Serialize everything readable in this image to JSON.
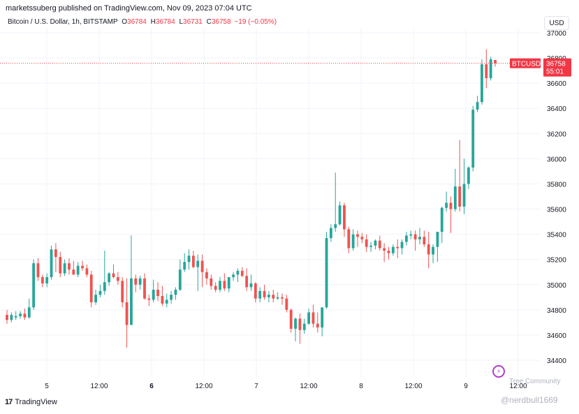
{
  "header": {
    "attribution": "marketssuberg published on TradingView.com, Nov 09, 2023 07:04 UTC"
  },
  "legend": {
    "symbol": "Bitcoin / U.S. Dollar, 1h, BITSTAMP",
    "o_label": "O",
    "o": "36784",
    "h_label": "H",
    "h": "36784",
    "l_label": "L",
    "l": "36731",
    "c_label": "C",
    "c": "36758",
    "change": "−19 (−0.05%)"
  },
  "currency_button": "USD",
  "price_tag": {
    "symbol": "BTCUSD",
    "price": "36758",
    "countdown": "55:01"
  },
  "branding": {
    "logo_text": "TradingView"
  },
  "watermarks": {
    "community": "Tree Community",
    "user": "@nerdbull1669"
  },
  "colors": {
    "up": "#26a69a",
    "down": "#ef5350",
    "grid": "#f0f3fa",
    "axis_text": "#131722",
    "price_line": "#f23645"
  },
  "chart_data": {
    "type": "candlestick",
    "title": "Bitcoin / U.S. Dollar, 1h, BITSTAMP",
    "ylim": [
      34300,
      37050
    ],
    "yticks": [
      34400,
      34600,
      34800,
      35000,
      35200,
      35400,
      35600,
      35800,
      36000,
      36200,
      36400,
      36600,
      36800,
      37000
    ],
    "xticks": [
      {
        "label": "5",
        "bold": false
      },
      {
        "label": "12:00",
        "bold": false
      },
      {
        "label": "6",
        "bold": true
      },
      {
        "label": "12:00",
        "bold": false
      },
      {
        "label": "7",
        "bold": false
      },
      {
        "label": "12:00",
        "bold": false
      },
      {
        "label": "8",
        "bold": false
      },
      {
        "label": "12:00",
        "bold": false
      },
      {
        "label": "9",
        "bold": false
      },
      {
        "label": "12:00",
        "bold": false
      }
    ],
    "last_price": 36758,
    "candles": [
      {
        "o": 34760,
        "h": 34800,
        "l": 34690,
        "c": 34720
      },
      {
        "o": 34720,
        "h": 34780,
        "l": 34700,
        "c": 34760
      },
      {
        "o": 34740,
        "h": 34790,
        "l": 34720,
        "c": 34750
      },
      {
        "o": 34750,
        "h": 34790,
        "l": 34730,
        "c": 34770
      },
      {
        "o": 34770,
        "h": 34810,
        "l": 34720,
        "c": 34740
      },
      {
        "o": 34740,
        "h": 34890,
        "l": 34730,
        "c": 34820
      },
      {
        "o": 34820,
        "h": 35200,
        "l": 34800,
        "c": 35170
      },
      {
        "o": 35170,
        "h": 35210,
        "l": 35030,
        "c": 35060
      },
      {
        "o": 35060,
        "h": 35080,
        "l": 34980,
        "c": 35010
      },
      {
        "o": 35010,
        "h": 35090,
        "l": 34980,
        "c": 35060
      },
      {
        "o": 35060,
        "h": 35310,
        "l": 35040,
        "c": 35280
      },
      {
        "o": 35280,
        "h": 35330,
        "l": 35100,
        "c": 35220
      },
      {
        "o": 35220,
        "h": 35260,
        "l": 35060,
        "c": 35090
      },
      {
        "o": 35090,
        "h": 35200,
        "l": 35070,
        "c": 35170
      },
      {
        "o": 35170,
        "h": 35210,
        "l": 35080,
        "c": 35120
      },
      {
        "o": 35120,
        "h": 35190,
        "l": 35080,
        "c": 35080
      },
      {
        "o": 35080,
        "h": 35180,
        "l": 35060,
        "c": 35150
      },
      {
        "o": 35150,
        "h": 35190,
        "l": 35110,
        "c": 35130
      },
      {
        "o": 35130,
        "h": 35160,
        "l": 35060,
        "c": 35080
      },
      {
        "o": 35080,
        "h": 35110,
        "l": 34820,
        "c": 34860
      },
      {
        "o": 34860,
        "h": 34960,
        "l": 34840,
        "c": 34920
      },
      {
        "o": 34920,
        "h": 35000,
        "l": 34900,
        "c": 34950
      },
      {
        "o": 34950,
        "h": 35270,
        "l": 34920,
        "c": 35020
      },
      {
        "o": 35020,
        "h": 35100,
        "l": 34990,
        "c": 35090
      },
      {
        "o": 35090,
        "h": 35160,
        "l": 35050,
        "c": 35060
      },
      {
        "o": 35060,
        "h": 35100,
        "l": 35000,
        "c": 35030
      },
      {
        "o": 35030,
        "h": 35060,
        "l": 34820,
        "c": 34860
      },
      {
        "o": 34860,
        "h": 35050,
        "l": 34500,
        "c": 34680
      },
      {
        "o": 34680,
        "h": 35390,
        "l": 34680,
        "c": 35050
      },
      {
        "o": 35050,
        "h": 35080,
        "l": 34940,
        "c": 35000
      },
      {
        "o": 35000,
        "h": 35070,
        "l": 34960,
        "c": 35050
      },
      {
        "o": 35050,
        "h": 35090,
        "l": 34880,
        "c": 34890
      },
      {
        "o": 34890,
        "h": 34920,
        "l": 34830,
        "c": 34880
      },
      {
        "o": 34880,
        "h": 35040,
        "l": 34860,
        "c": 34960
      },
      {
        "o": 34960,
        "h": 35020,
        "l": 34870,
        "c": 34910
      },
      {
        "o": 34910,
        "h": 34990,
        "l": 34830,
        "c": 34850
      },
      {
        "o": 34850,
        "h": 34930,
        "l": 34820,
        "c": 34880
      },
      {
        "o": 34880,
        "h": 34950,
        "l": 34850,
        "c": 34920
      },
      {
        "o": 34920,
        "h": 34980,
        "l": 34880,
        "c": 34960
      },
      {
        "o": 34960,
        "h": 35200,
        "l": 34950,
        "c": 35120
      },
      {
        "o": 35120,
        "h": 35250,
        "l": 35100,
        "c": 35180
      },
      {
        "o": 35180,
        "h": 35280,
        "l": 35120,
        "c": 35230
      },
      {
        "o": 35230,
        "h": 35270,
        "l": 35130,
        "c": 35140
      },
      {
        "o": 35140,
        "h": 35240,
        "l": 34950,
        "c": 35190
      },
      {
        "o": 35190,
        "h": 35240,
        "l": 34980,
        "c": 35100
      },
      {
        "o": 35100,
        "h": 35130,
        "l": 35000,
        "c": 35050
      },
      {
        "o": 35050,
        "h": 35080,
        "l": 34960,
        "c": 34990
      },
      {
        "o": 34990,
        "h": 35020,
        "l": 34940,
        "c": 34960
      },
      {
        "o": 34960,
        "h": 35060,
        "l": 34940,
        "c": 35030
      },
      {
        "o": 35030,
        "h": 35090,
        "l": 34950,
        "c": 34970
      },
      {
        "o": 34970,
        "h": 35050,
        "l": 34940,
        "c": 35060
      },
      {
        "o": 35060,
        "h": 35100,
        "l": 35030,
        "c": 35080
      },
      {
        "o": 35080,
        "h": 35130,
        "l": 35020,
        "c": 35110
      },
      {
        "o": 35110,
        "h": 35140,
        "l": 35060,
        "c": 35070
      },
      {
        "o": 35070,
        "h": 35130,
        "l": 34950,
        "c": 34980
      },
      {
        "o": 34980,
        "h": 35080,
        "l": 34950,
        "c": 35010
      },
      {
        "o": 35010,
        "h": 35020,
        "l": 34860,
        "c": 34890
      },
      {
        "o": 34890,
        "h": 34980,
        "l": 34860,
        "c": 34950
      },
      {
        "o": 34950,
        "h": 35000,
        "l": 34880,
        "c": 34900
      },
      {
        "o": 34900,
        "h": 34950,
        "l": 34860,
        "c": 34920
      },
      {
        "o": 34920,
        "h": 34960,
        "l": 34860,
        "c": 34890
      },
      {
        "o": 34890,
        "h": 34940,
        "l": 34880,
        "c": 34900
      },
      {
        "o": 34900,
        "h": 34930,
        "l": 34840,
        "c": 34890
      },
      {
        "o": 34890,
        "h": 34920,
        "l": 34780,
        "c": 34800
      },
      {
        "o": 34800,
        "h": 34810,
        "l": 34620,
        "c": 34650
      },
      {
        "o": 34650,
        "h": 34740,
        "l": 34550,
        "c": 34730
      },
      {
        "o": 34730,
        "h": 34770,
        "l": 34530,
        "c": 34640
      },
      {
        "o": 34640,
        "h": 34730,
        "l": 34610,
        "c": 34690
      },
      {
        "o": 34690,
        "h": 34810,
        "l": 34680,
        "c": 34780
      },
      {
        "o": 34780,
        "h": 34840,
        "l": 34660,
        "c": 34690
      },
      {
        "o": 34690,
        "h": 34780,
        "l": 34620,
        "c": 34660
      },
      {
        "o": 34660,
        "h": 34820,
        "l": 34590,
        "c": 34820
      },
      {
        "o": 34820,
        "h": 35420,
        "l": 34810,
        "c": 35370
      },
      {
        "o": 35370,
        "h": 35480,
        "l": 35340,
        "c": 35450
      },
      {
        "o": 35450,
        "h": 35890,
        "l": 35420,
        "c": 35480
      },
      {
        "o": 35480,
        "h": 35660,
        "l": 35470,
        "c": 35630
      },
      {
        "o": 35630,
        "h": 35650,
        "l": 35380,
        "c": 35440
      },
      {
        "o": 35440,
        "h": 35460,
        "l": 35250,
        "c": 35290
      },
      {
        "o": 35290,
        "h": 35440,
        "l": 35270,
        "c": 35400
      },
      {
        "o": 35400,
        "h": 35430,
        "l": 35300,
        "c": 35380
      },
      {
        "o": 35380,
        "h": 35410,
        "l": 35330,
        "c": 35360
      },
      {
        "o": 35360,
        "h": 35400,
        "l": 35260,
        "c": 35300
      },
      {
        "o": 35300,
        "h": 35340,
        "l": 35260,
        "c": 35310
      },
      {
        "o": 35310,
        "h": 35360,
        "l": 35280,
        "c": 35350
      },
      {
        "o": 35350,
        "h": 35390,
        "l": 35270,
        "c": 35290
      },
      {
        "o": 35290,
        "h": 35330,
        "l": 35180,
        "c": 35270
      },
      {
        "o": 35270,
        "h": 35300,
        "l": 35200,
        "c": 35250
      },
      {
        "o": 35250,
        "h": 35320,
        "l": 35230,
        "c": 35300
      },
      {
        "o": 35300,
        "h": 35360,
        "l": 35210,
        "c": 35290
      },
      {
        "o": 35290,
        "h": 35360,
        "l": 35240,
        "c": 35340
      },
      {
        "o": 35340,
        "h": 35420,
        "l": 35310,
        "c": 35390
      },
      {
        "o": 35390,
        "h": 35430,
        "l": 35360,
        "c": 35400
      },
      {
        "o": 35400,
        "h": 35430,
        "l": 35270,
        "c": 35360
      },
      {
        "o": 35360,
        "h": 35450,
        "l": 35320,
        "c": 35380
      },
      {
        "o": 35380,
        "h": 35430,
        "l": 35300,
        "c": 35320
      },
      {
        "o": 35320,
        "h": 35420,
        "l": 35130,
        "c": 35240
      },
      {
        "o": 35240,
        "h": 35320,
        "l": 35170,
        "c": 35300
      },
      {
        "o": 35300,
        "h": 35420,
        "l": 35180,
        "c": 35420
      },
      {
        "o": 35420,
        "h": 35620,
        "l": 35330,
        "c": 35610
      },
      {
        "o": 35610,
        "h": 35740,
        "l": 35580,
        "c": 35650
      },
      {
        "o": 35650,
        "h": 35700,
        "l": 35410,
        "c": 35600
      },
      {
        "o": 35600,
        "h": 35920,
        "l": 35580,
        "c": 35780
      },
      {
        "o": 35780,
        "h": 36150,
        "l": 35580,
        "c": 35620
      },
      {
        "o": 35620,
        "h": 36000,
        "l": 35560,
        "c": 35800
      },
      {
        "o": 35800,
        "h": 35940,
        "l": 35760,
        "c": 35930
      },
      {
        "o": 35930,
        "h": 36420,
        "l": 35900,
        "c": 36390
      },
      {
        "o": 36390,
        "h": 36500,
        "l": 36370,
        "c": 36450
      },
      {
        "o": 36450,
        "h": 36790,
        "l": 36430,
        "c": 36750
      },
      {
        "o": 36750,
        "h": 36870,
        "l": 36560,
        "c": 36640
      },
      {
        "o": 36640,
        "h": 36810,
        "l": 36620,
        "c": 36790
      },
      {
        "o": 36784,
        "h": 36784,
        "l": 36731,
        "c": 36758
      }
    ]
  }
}
